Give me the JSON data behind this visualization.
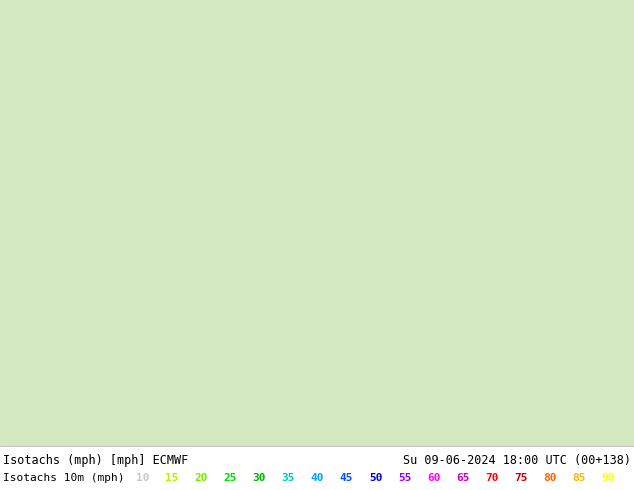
{
  "title_left": "Isotachs (mph) [mph] ECMWF",
  "title_right": "Su 09-06-2024 18:00 UTC (00+138)",
  "legend_label": "Isotachs 10m (mph)",
  "legend_values": [
    10,
    15,
    20,
    25,
    30,
    35,
    40,
    45,
    50,
    55,
    60,
    65,
    70,
    75,
    80,
    85,
    90
  ],
  "legend_colors": [
    "#c8c8c8",
    "#b4f000",
    "#78e800",
    "#00dc00",
    "#00b400",
    "#00c8c8",
    "#00a0ff",
    "#0050ff",
    "#0000d2",
    "#9600ff",
    "#ff00ff",
    "#c800c8",
    "#ff0000",
    "#c80000",
    "#ff6400",
    "#ffb400",
    "#ffff00"
  ],
  "bg_color": "#ffffff",
  "map_bg": "#d4e8c0",
  "fig_width": 6.34,
  "fig_height": 4.9,
  "dpi": 100,
  "text_color": "#000000",
  "title_fontsize": 8.5,
  "legend_fontsize": 8.0
}
